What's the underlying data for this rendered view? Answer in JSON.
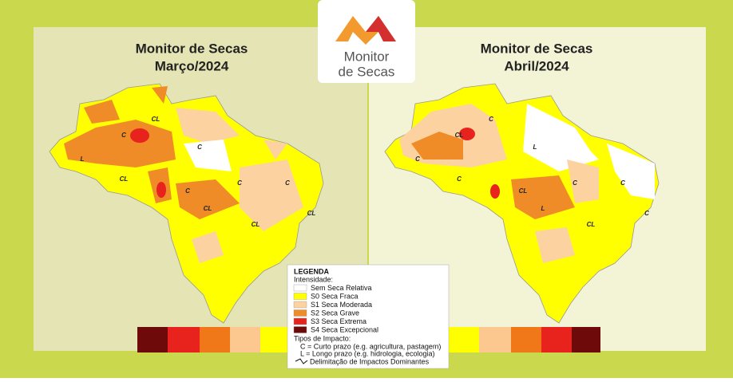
{
  "logo": {
    "line1": "Monitor",
    "line2": "de Secas"
  },
  "maps": [
    {
      "title": "Monitor de Secas",
      "subtitle": "Março/2024",
      "labels": [
        "CL",
        "C",
        "L",
        "C",
        "CL",
        "C",
        "C",
        "CL",
        "C",
        "CL",
        "CL"
      ]
    },
    {
      "title": "Monitor de Secas",
      "subtitle": "Abril/2024",
      "labels": [
        "C",
        "CL",
        "C",
        "L",
        "C",
        "CL",
        "C",
        "L",
        "C",
        "CL",
        "C"
      ]
    }
  ],
  "legend": {
    "title": "LEGENDA",
    "intensity_heading": "Intensidade:",
    "categories": [
      {
        "label": "Sem Seca Relativa",
        "color": "#ffffff"
      },
      {
        "label": "S0 Seca Fraca",
        "color": "#ffff00"
      },
      {
        "label": "S1 Seca Moderada",
        "color": "#fcd3a0"
      },
      {
        "label": "S2 Seca Grave",
        "color": "#f08c28"
      },
      {
        "label": "S3 Seca Extrema",
        "color": "#e8221c"
      },
      {
        "label": "S4 Seca Excepcional",
        "color": "#6e0a0a"
      }
    ],
    "impact_heading": "Tipos de Impacto:",
    "impact_types": [
      "C = Curto prazo (e.g. agricultura, pastagem)",
      "L = Longo prazo (e.g. hidrologia, ecologia)"
    ],
    "boundary_label": "Delimitação de Impactos Dominantes"
  },
  "color_strip": [
    "#6e0a0a",
    "#e8221c",
    "#f07818",
    "#fcc890",
    "#ffff00",
    "#ffff00",
    "#fcc890",
    "#f07818",
    "#e8221c",
    "#6e0a0a"
  ]
}
